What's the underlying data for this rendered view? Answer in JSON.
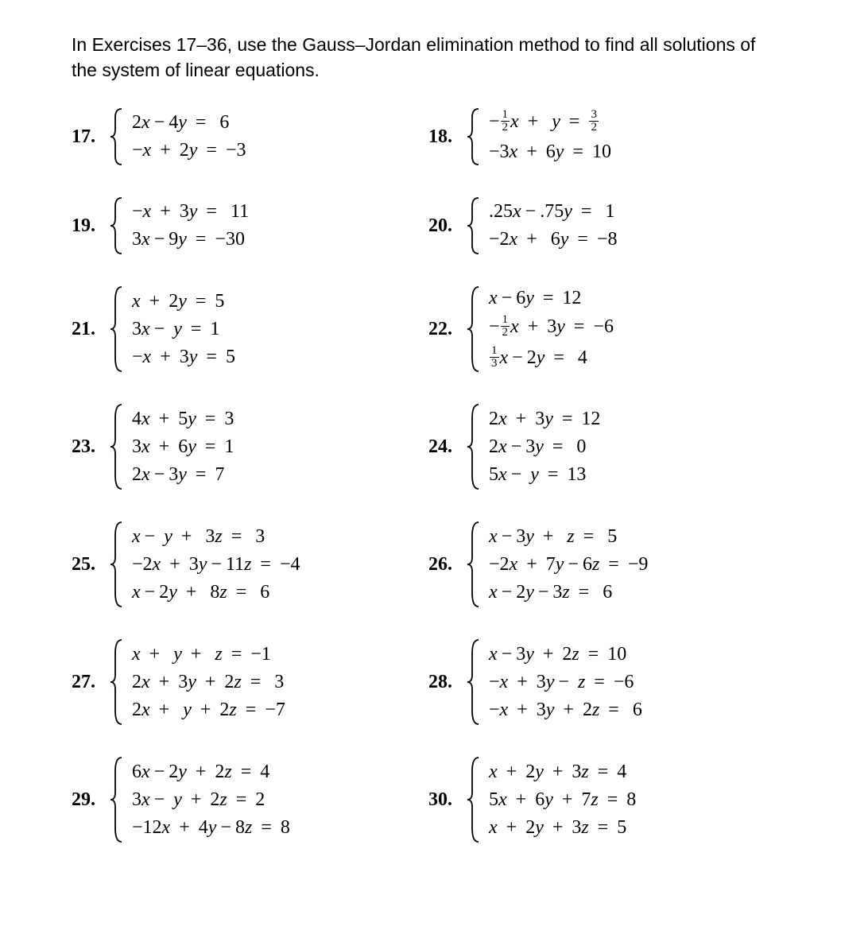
{
  "instructions": "In Exercises 17–36, use the Gauss–Jordan elimination method to find all solutions of the system of linear equations.",
  "style": {
    "body_bg": "#ffffff",
    "text_color": "#000000",
    "instruction_font": "Arial, Helvetica, sans-serif",
    "instruction_fontsize": 23,
    "math_font": "'Times New Roman', Georgia, serif",
    "math_fontsize": 24,
    "exnum_fontweight": "bold",
    "grid_cols": 2,
    "row_gap": 36,
    "col_gap": 20
  },
  "exercises": [
    {
      "num": "17.",
      "eqs": [
        "2x − 4y =  6",
        "−x + 2y = −3"
      ]
    },
    {
      "num": "18.",
      "eqs": [
        "−(1/2)x +  y = (3/2)",
        "−3x + 6y = 10"
      ]
    },
    {
      "num": "19.",
      "eqs": [
        "−x + 3y =  11",
        "3x − 9y = −30"
      ]
    },
    {
      "num": "20.",
      "eqs": [
        ".25x − .75y =  1",
        "−2x +  6y = −8"
      ]
    },
    {
      "num": "21.",
      "eqs": [
        "x + 2y = 5",
        "3x −  y = 1",
        "−x + 3y = 5"
      ]
    },
    {
      "num": "22.",
      "eqs": [
        "x − 6y = 12",
        "−(1/2)x + 3y = −6",
        "(1/3)x − 2y =  4"
      ]
    },
    {
      "num": "23.",
      "eqs": [
        "4x + 5y = 3",
        "3x + 6y = 1",
        "2x − 3y = 7"
      ]
    },
    {
      "num": "24.",
      "eqs": [
        "2x + 3y = 12",
        "2x − 3y =  0",
        "5x −  y = 13"
      ]
    },
    {
      "num": "25.",
      "eqs": [
        "x −  y +  3z =  3",
        "−2x + 3y − 11z = −4",
        "x − 2y +  8z =  6"
      ]
    },
    {
      "num": "26.",
      "eqs": [
        "x − 3y +  z =  5",
        "−2x + 7y − 6z = −9",
        "x − 2y − 3z =  6"
      ]
    },
    {
      "num": "27.",
      "eqs": [
        "x +  y +  z = −1",
        "2x + 3y + 2z =  3",
        "2x +  y + 2z = −7"
      ]
    },
    {
      "num": "28.",
      "eqs": [
        "x − 3y + 2z = 10",
        "−x + 3y −  z = −6",
        "−x + 3y + 2z =  6"
      ]
    },
    {
      "num": "29.",
      "eqs": [
        "6x − 2y + 2z = 4",
        "3x −  y + 2z = 2",
        "−12x + 4y − 8z = 8"
      ]
    },
    {
      "num": "30.",
      "eqs": [
        "x + 2y + 3z = 4",
        "5x + 6y + 7z = 8",
        "x + 2y + 3z = 5"
      ]
    }
  ]
}
